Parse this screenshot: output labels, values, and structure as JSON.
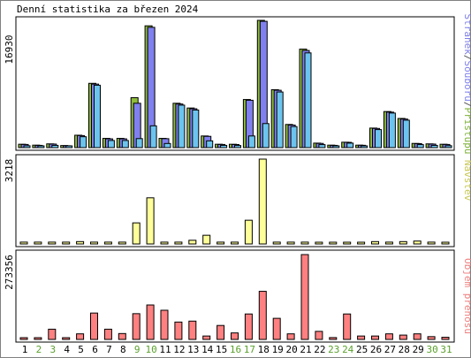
{
  "title": "Denní statistika za březen 2024",
  "panels": {
    "hits": {
      "max_label": "16930",
      "legend": [
        {
          "text": "Stránek",
          "color": "#7e7ee8"
        },
        {
          "text": "/",
          "color": "#555555"
        },
        {
          "text": "Souborů",
          "color": "#8080f0"
        },
        {
          "text": "/",
          "color": "#555555"
        },
        {
          "text": "Přístupů",
          "color": "#7fb23a"
        }
      ]
    },
    "visits": {
      "max_label": "3218",
      "legend": [
        {
          "text": "Návštěv",
          "color": "#c8c855"
        }
      ]
    },
    "volume": {
      "max_label": "273356",
      "legend": [
        {
          "text": "Objem přenosu",
          "color": "#f08080"
        }
      ]
    }
  },
  "x_axis": {
    "labels": [
      "1",
      "2",
      "3",
      "4",
      "5",
      "6",
      "7",
      "8",
      "9",
      "10",
      "11",
      "12",
      "13",
      "14",
      "15",
      "16",
      "17",
      "18",
      "19",
      "20",
      "21",
      "22",
      "23",
      "24",
      "25",
      "26",
      "27",
      "28",
      "29",
      "30",
      "31"
    ],
    "weekend_days": [
      2,
      3,
      9,
      10,
      16,
      17,
      23,
      24,
      30,
      31
    ],
    "weekday_color": "#000000",
    "weekend_color": "#5aa02c"
  },
  "chart_data": [
    {
      "type": "bar",
      "title": "Denní statistika za březen 2024",
      "ylabel": "16930",
      "ylim": [
        0,
        16930
      ],
      "categories": [
        "1",
        "2",
        "3",
        "4",
        "5",
        "6",
        "7",
        "8",
        "9",
        "10",
        "11",
        "12",
        "13",
        "14",
        "15",
        "16",
        "17",
        "18",
        "19",
        "20",
        "21",
        "22",
        "23",
        "24",
        "25",
        "26",
        "27",
        "28",
        "29",
        "30",
        "31"
      ],
      "series": [
        {
          "name": "Přístupů",
          "color": "#8fbc3c",
          "values": [
            450,
            330,
            500,
            280,
            1650,
            8550,
            1230,
            1230,
            6640,
            16200,
            1230,
            5900,
            5270,
            1550,
            450,
            450,
            6400,
            16930,
            7700,
            3080,
            13100,
            600,
            330,
            720,
            330,
            2600,
            4800,
            3880,
            560,
            500,
            450
          ]
        },
        {
          "name": "Souborů",
          "color": "#8080ee",
          "values": [
            420,
            300,
            470,
            250,
            1600,
            8450,
            1170,
            1170,
            5900,
            16000,
            1190,
            5800,
            5170,
            1500,
            420,
            410,
            6300,
            16800,
            7630,
            3000,
            12920,
            560,
            300,
            700,
            310,
            2550,
            4720,
            3800,
            530,
            470,
            420
          ]
        },
        {
          "name": "Stránek",
          "color": "#6cc4ee",
          "values": [
            250,
            200,
            300,
            150,
            1450,
            8300,
            950,
            950,
            1200,
            2900,
            550,
            5650,
            5000,
            900,
            300,
            280,
            1550,
            3200,
            7400,
            2800,
            12600,
            400,
            200,
            600,
            200,
            2400,
            4600,
            3650,
            400,
            300,
            260
          ]
        }
      ]
    },
    {
      "type": "bar",
      "ylabel": "3218",
      "ylim": [
        0,
        3218
      ],
      "categories": [
        "1",
        "2",
        "3",
        "4",
        "5",
        "6",
        "7",
        "8",
        "9",
        "10",
        "11",
        "12",
        "13",
        "14",
        "15",
        "16",
        "17",
        "18",
        "19",
        "20",
        "21",
        "22",
        "23",
        "24",
        "25",
        "26",
        "27",
        "28",
        "29",
        "30",
        "31"
      ],
      "series": [
        {
          "name": "Návštěv",
          "color": "#ffff99",
          "values": [
            70,
            70,
            70,
            70,
            90,
            70,
            70,
            70,
            800,
            1750,
            70,
            70,
            140,
            330,
            70,
            70,
            900,
            3218,
            70,
            70,
            70,
            60,
            40,
            60,
            60,
            90,
            70,
            90,
            110,
            70,
            60
          ]
        }
      ]
    },
    {
      "type": "bar",
      "ylabel": "273356",
      "ylim": [
        0,
        273356
      ],
      "categories": [
        "1",
        "2",
        "3",
        "4",
        "5",
        "6",
        "7",
        "8",
        "9",
        "10",
        "11",
        "12",
        "13",
        "14",
        "15",
        "16",
        "17",
        "18",
        "19",
        "20",
        "21",
        "22",
        "23",
        "24",
        "25",
        "26",
        "27",
        "28",
        "29",
        "30",
        "31"
      ],
      "series": [
        {
          "name": "Objem přenosu",
          "color": "#ff8080",
          "values": [
            5000,
            2500,
            33000,
            4500,
            18000,
            85000,
            33000,
            19000,
            83000,
            111000,
            94000,
            56000,
            59000,
            11000,
            45000,
            21000,
            82000,
            155000,
            68000,
            18000,
            273356,
            26000,
            6000,
            82000,
            11000,
            11000,
            18000,
            14000,
            18000,
            9000,
            7000
          ]
        }
      ]
    }
  ]
}
